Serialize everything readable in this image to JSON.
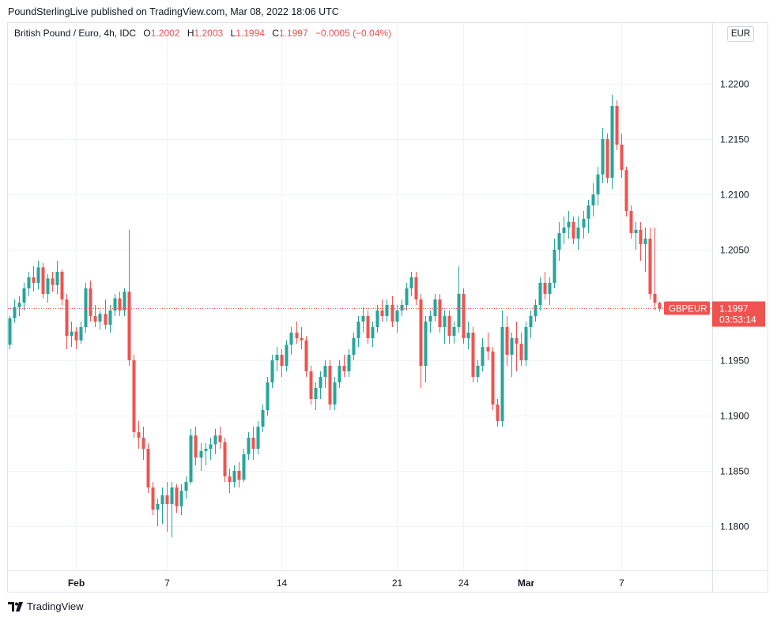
{
  "publisher_line": "PoundSterlingLive published on TradingView.com, Mar 08, 2022 18:06 UTC",
  "legend": {
    "symbol": "British Pound / Euro, 4h, IDC",
    "open_label": "O",
    "open": "1.2002",
    "high_label": "H",
    "high": "1.2003",
    "low_label": "L",
    "low": "1.1994",
    "close_label": "C",
    "close": "1.1997",
    "change": "−0.0005 (−0.04%)"
  },
  "currency_button": "EUR",
  "price_tag": {
    "symbol": "GBPEUR",
    "price": "1.1997",
    "countdown": "03:53:14"
  },
  "footer": {
    "brand": "TradingView"
  },
  "colors": {
    "up": "#26a69a",
    "down": "#ef5350",
    "grid": "#f0f3fa",
    "text": "#131722"
  },
  "chart_data": {
    "type": "candlestick",
    "interval": "4h",
    "ylim": [
      1.176,
      1.2255
    ],
    "y_ticks": [
      1.18,
      1.185,
      1.19,
      1.195,
      1.2,
      1.205,
      1.21,
      1.215,
      1.22
    ],
    "y_tick_labels": [
      "1.1800",
      "1.1850",
      "1.1900",
      "1.1950",
      "1.2000",
      "1.2050",
      "1.2100",
      "1.2150",
      "1.2200"
    ],
    "x_ticks": [
      {
        "label": "Feb",
        "index": 14
      },
      {
        "label": "7",
        "index": 33
      },
      {
        "label": "14",
        "index": 57
      },
      {
        "label": "21",
        "index": 81
      },
      {
        "label": "24",
        "index": 95
      },
      {
        "label": "Mar",
        "index": 108
      },
      {
        "label": "7",
        "index": 128
      }
    ],
    "last_price": 1.1997,
    "candles": [
      [
        1.1964,
        1.199,
        1.196,
        1.1988
      ],
      [
        1.1988,
        1.2005,
        1.1984,
        1.1998
      ],
      [
        1.1998,
        1.2008,
        1.199,
        1.2002
      ],
      [
        1.2002,
        1.202,
        1.1995,
        1.2015
      ],
      [
        1.2015,
        1.203,
        1.2008,
        1.2025
      ],
      [
        1.2025,
        1.2035,
        1.2012,
        1.202
      ],
      [
        1.202,
        1.204,
        1.2014,
        1.2034
      ],
      [
        1.2034,
        1.2038,
        1.2006,
        1.201
      ],
      [
        1.201,
        1.2028,
        1.2002,
        1.2024
      ],
      [
        1.2024,
        1.203,
        1.2012,
        1.2018
      ],
      [
        1.2018,
        1.204,
        1.201,
        1.203
      ],
      [
        1.203,
        1.2032,
        1.2,
        1.2005
      ],
      [
        1.2005,
        1.201,
        1.196,
        1.1972
      ],
      [
        1.1972,
        1.1985,
        1.1962,
        1.1976
      ],
      [
        1.1976,
        1.198,
        1.196,
        1.1968
      ],
      [
        1.1968,
        1.1985,
        1.1965,
        1.198
      ],
      [
        1.198,
        1.202,
        1.1975,
        1.2015
      ],
      [
        1.2015,
        1.2022,
        1.1985,
        1.199
      ],
      [
        1.199,
        1.2,
        1.198,
        1.1985
      ],
      [
        1.1985,
        1.1995,
        1.1978,
        1.1992
      ],
      [
        1.1992,
        1.2005,
        1.1978,
        1.1982
      ],
      [
        1.1982,
        1.2,
        1.1975,
        1.1995
      ],
      [
        1.1995,
        1.201,
        1.199,
        1.2006
      ],
      [
        1.2006,
        1.2012,
        1.199,
        1.1995
      ],
      [
        1.1995,
        1.2015,
        1.199,
        1.2012
      ],
      [
        1.2012,
        1.2068,
        1.1945,
        1.195
      ],
      [
        1.195,
        1.1955,
        1.188,
        1.1885
      ],
      [
        1.1885,
        1.1895,
        1.187,
        1.188
      ],
      [
        1.188,
        1.189,
        1.186,
        1.187
      ],
      [
        1.187,
        1.1875,
        1.183,
        1.1835
      ],
      [
        1.1835,
        1.184,
        1.181,
        1.1815
      ],
      [
        1.1815,
        1.1825,
        1.18,
        1.182
      ],
      [
        1.182,
        1.1835,
        1.1802,
        1.1828
      ],
      [
        1.1828,
        1.184,
        1.1795,
        1.182
      ],
      [
        1.182,
        1.184,
        1.179,
        1.1835
      ],
      [
        1.1835,
        1.1838,
        1.1812,
        1.1818
      ],
      [
        1.1818,
        1.1838,
        1.181,
        1.1832
      ],
      [
        1.1832,
        1.1845,
        1.1825,
        1.184
      ],
      [
        1.184,
        1.1888,
        1.1838,
        1.1882
      ],
      [
        1.1882,
        1.189,
        1.1855,
        1.1862
      ],
      [
        1.1862,
        1.1875,
        1.185,
        1.1868
      ],
      [
        1.1868,
        1.1875,
        1.1855,
        1.187
      ],
      [
        1.187,
        1.188,
        1.186,
        1.1874
      ],
      [
        1.1874,
        1.1888,
        1.1865,
        1.1882
      ],
      [
        1.1882,
        1.189,
        1.187,
        1.1876
      ],
      [
        1.1876,
        1.188,
        1.184,
        1.1845
      ],
      [
        1.1845,
        1.1852,
        1.183,
        1.184
      ],
      [
        1.184,
        1.1855,
        1.1835,
        1.185
      ],
      [
        1.185,
        1.1858,
        1.1835,
        1.1842
      ],
      [
        1.1842,
        1.187,
        1.184,
        1.1865
      ],
      [
        1.1865,
        1.1885,
        1.186,
        1.188
      ],
      [
        1.188,
        1.189,
        1.186,
        1.187
      ],
      [
        1.187,
        1.1895,
        1.1865,
        1.189
      ],
      [
        1.189,
        1.191,
        1.1885,
        1.1905
      ],
      [
        1.1905,
        1.1935,
        1.19,
        1.193
      ],
      [
        1.193,
        1.1955,
        1.1925,
        1.195
      ],
      [
        1.195,
        1.1962,
        1.194,
        1.1955
      ],
      [
        1.1955,
        1.196,
        1.1935,
        1.1945
      ],
      [
        1.1945,
        1.1968,
        1.194,
        1.1964
      ],
      [
        1.1964,
        1.198,
        1.1955,
        1.1975
      ],
      [
        1.1975,
        1.1985,
        1.1965,
        1.197
      ],
      [
        1.197,
        1.198,
        1.196,
        1.1968
      ],
      [
        1.1968,
        1.1972,
        1.1935,
        1.194
      ],
      [
        1.194,
        1.1945,
        1.191,
        1.1915
      ],
      [
        1.1915,
        1.193,
        1.1905,
        1.1925
      ],
      [
        1.1925,
        1.194,
        1.1915,
        1.1935
      ],
      [
        1.1935,
        1.195,
        1.1925,
        1.1945
      ],
      [
        1.1945,
        1.195,
        1.1905,
        1.191
      ],
      [
        1.191,
        1.1935,
        1.1905,
        1.193
      ],
      [
        1.193,
        1.195,
        1.1925,
        1.1945
      ],
      [
        1.1945,
        1.1955,
        1.1935,
        1.194
      ],
      [
        1.194,
        1.196,
        1.1935,
        1.1955
      ],
      [
        1.1955,
        1.1975,
        1.195,
        1.197
      ],
      [
        1.197,
        1.199,
        1.1962,
        1.1985
      ],
      [
        1.1985,
        1.1998,
        1.1975,
        1.199
      ],
      [
        1.199,
        1.1995,
        1.1965,
        1.197
      ],
      [
        1.197,
        1.1985,
        1.1962,
        1.198
      ],
      [
        1.198,
        1.2,
        1.1975,
        1.1995
      ],
      [
        1.1995,
        1.2005,
        1.1985,
        1.199
      ],
      [
        1.199,
        1.2005,
        1.1985,
        1.2
      ],
      [
        1.2,
        1.2008,
        1.198,
        1.1985
      ],
      [
        1.1985,
        1.2,
        1.1975,
        1.1995
      ],
      [
        1.1995,
        1.2005,
        1.199,
        1.2
      ],
      [
        1.2,
        1.202,
        1.1995,
        1.2015
      ],
      [
        1.2015,
        1.203,
        1.2008,
        1.2025
      ],
      [
        1.2025,
        1.203,
        1.2,
        1.2005
      ],
      [
        1.2005,
        1.201,
        1.1925,
        1.1945
      ],
      [
        1.1945,
        1.199,
        1.193,
        1.1985
      ],
      [
        1.1985,
        1.1995,
        1.1975,
        1.199
      ],
      [
        1.199,
        1.201,
        1.1985,
        1.2005
      ],
      [
        1.2005,
        1.201,
        1.1975,
        1.198
      ],
      [
        1.198,
        1.1995,
        1.1965,
        1.199
      ],
      [
        1.199,
        1.1995,
        1.1965,
        1.1972
      ],
      [
        1.1972,
        1.1985,
        1.1965,
        1.198
      ],
      [
        1.198,
        1.2035,
        1.1975,
        1.201
      ],
      [
        1.201,
        1.2015,
        1.1965,
        1.197
      ],
      [
        1.197,
        1.1985,
        1.196,
        1.1975
      ],
      [
        1.1975,
        1.198,
        1.193,
        1.1935
      ],
      [
        1.1935,
        1.195,
        1.193,
        1.1945
      ],
      [
        1.1945,
        1.197,
        1.194,
        1.1962
      ],
      [
        1.1962,
        1.1975,
        1.195,
        1.1958
      ],
      [
        1.1958,
        1.1962,
        1.1905,
        1.191
      ],
      [
        1.191,
        1.1915,
        1.189,
        1.1895
      ],
      [
        1.1895,
        1.1995,
        1.189,
        1.198
      ],
      [
        1.198,
        1.199,
        1.1945,
        1.1955
      ],
      [
        1.1955,
        1.1975,
        1.1935,
        1.197
      ],
      [
        1.197,
        1.1985,
        1.194,
        1.1965
      ],
      [
        1.1965,
        1.1975,
        1.1945,
        1.195
      ],
      [
        1.195,
        1.1985,
        1.1945,
        1.198
      ],
      [
        1.198,
        1.1995,
        1.197,
        1.199
      ],
      [
        1.199,
        1.2005,
        1.1985,
        1.2
      ],
      [
        1.2,
        1.2025,
        1.1995,
        1.202
      ],
      [
        1.202,
        1.203,
        1.2005,
        1.201
      ],
      [
        1.201,
        1.2025,
        1.2,
        1.202
      ],
      [
        1.202,
        1.206,
        1.2015,
        1.205
      ],
      [
        1.205,
        1.2075,
        1.204,
        1.2065
      ],
      [
        1.2065,
        1.208,
        1.2055,
        1.207
      ],
      [
        1.207,
        1.2085,
        1.206,
        1.2075
      ],
      [
        1.2075,
        1.208,
        1.2055,
        1.206
      ],
      [
        1.206,
        1.208,
        1.205,
        1.207
      ],
      [
        1.207,
        1.2085,
        1.206,
        1.2078
      ],
      [
        1.2078,
        1.2095,
        1.2065,
        1.209
      ],
      [
        1.209,
        1.211,
        1.208,
        1.21
      ],
      [
        1.21,
        1.2125,
        1.209,
        1.2118
      ],
      [
        1.2118,
        1.216,
        1.211,
        1.215
      ],
      [
        1.215,
        1.2155,
        1.211,
        1.2115
      ],
      [
        1.2115,
        1.219,
        1.2105,
        1.218
      ],
      [
        1.218,
        1.2185,
        1.214,
        1.2145
      ],
      [
        1.2145,
        1.2155,
        1.2115,
        1.2122
      ],
      [
        1.2122,
        1.2125,
        1.208,
        1.2085
      ],
      [
        1.2085,
        1.209,
        1.206,
        1.2065
      ],
      [
        1.2065,
        1.2075,
        1.205,
        1.2068
      ],
      [
        1.2068,
        1.2075,
        1.204,
        1.2055
      ],
      [
        1.2055,
        1.207,
        1.203,
        1.206
      ],
      [
        1.206,
        1.207,
        1.2005,
        1.201
      ],
      [
        1.201,
        1.207,
        1.1995,
        1.2002
      ],
      [
        1.2002,
        1.2003,
        1.1994,
        1.1997
      ]
    ]
  }
}
